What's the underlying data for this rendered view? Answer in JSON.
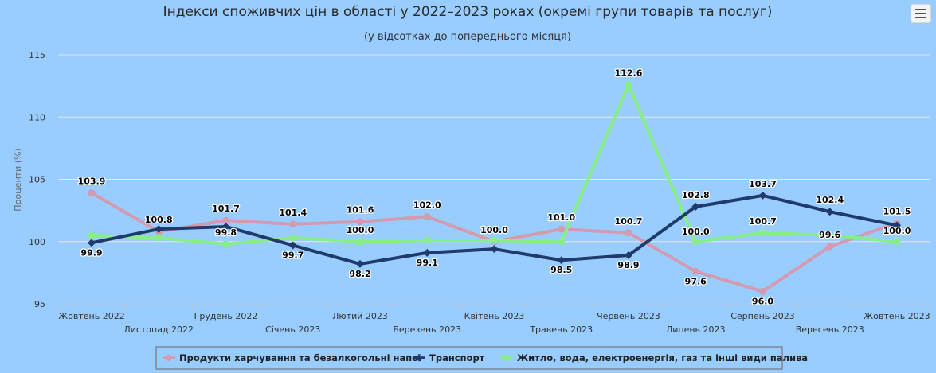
{
  "chart_data": {
    "type": "line",
    "title": "Індекси споживчих цін в області у 2022–2023 роках (окремі групи товарів та послуг)",
    "subtitle": "(у відсотках до попереднього місяця)",
    "ylabel": "Проценти (%)",
    "xlabel": "",
    "ylim": [
      95,
      115
    ],
    "yticks": [
      95,
      100,
      105,
      110,
      115
    ],
    "grid": true,
    "legend_position": "bottom",
    "categories": [
      "Жовтень 2022",
      "Листопад 2022",
      "Грудень 2022",
      "Січень 2023",
      "Лютий 2023",
      "Березень 2023",
      "Квітень 2023",
      "Травень 2023",
      "Червень 2023",
      "Липень 2023",
      "Серпень 2023",
      "Вересень 2023",
      "Жовтень 2023"
    ],
    "series": [
      {
        "name": "Продукти харчування та безалкогольні напої",
        "color": "#d49ab0",
        "values": [
          103.9,
          100.8,
          101.7,
          101.4,
          101.6,
          102.0,
          100.0,
          101.0,
          100.7,
          97.6,
          96.0,
          99.6,
          101.5
        ],
        "labels": [
          "103.9",
          "100.8",
          "101.7",
          "101.4",
          "101.6",
          "102.0",
          "100.0",
          "101.0",
          "100.7",
          "97.6",
          "96.0",
          "99.6",
          "101.5"
        ]
      },
      {
        "name": "Транспорт",
        "color": "#1f3a6b",
        "values": [
          99.9,
          101.0,
          101.2,
          99.7,
          98.2,
          99.1,
          99.4,
          98.5,
          98.9,
          102.8,
          103.7,
          102.4,
          101.3
        ],
        "labels": [
          "99.9",
          "",
          "",
          "99.7",
          "98.2",
          "99.1",
          "",
          "98.5",
          "98.9",
          "102.8",
          "103.7",
          "102.4",
          ""
        ]
      },
      {
        "name": "Житло, вода, електроенергія, газ та інші види палива",
        "color": "#88ee88",
        "values": [
          100.5,
          100.3,
          99.8,
          100.3,
          100.0,
          100.1,
          100.1,
          100.0,
          112.6,
          100.0,
          100.7,
          100.5,
          100.0
        ],
        "labels": [
          "",
          "",
          "99.8",
          "",
          "100.0",
          "",
          "",
          "",
          "112.6",
          "100.0",
          "100.7",
          "",
          "100.0"
        ]
      }
    ]
  },
  "menu": {
    "icon": "hamburger-menu-icon"
  }
}
